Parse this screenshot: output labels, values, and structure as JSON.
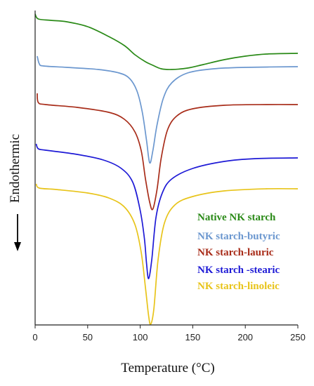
{
  "chart_data": {
    "type": "line",
    "title": "",
    "xlabel": "Temperature (°C)",
    "ylabel": "Endothermic",
    "xlim": [
      0,
      250
    ],
    "xticks": [
      0,
      50,
      100,
      150,
      200,
      250
    ],
    "grid": false,
    "legend_position": "lower-right",
    "y_direction_indicator": "down-arrow",
    "series": [
      {
        "name": "Native NK starch",
        "color": "#2a8a17",
        "points": [
          [
            0,
            20
          ],
          [
            3,
            27
          ],
          [
            15,
            29
          ],
          [
            30,
            31
          ],
          [
            50,
            38
          ],
          [
            70,
            52
          ],
          [
            85,
            65
          ],
          [
            95,
            78
          ],
          [
            105,
            88
          ],
          [
            112,
            93
          ],
          [
            120,
            98
          ],
          [
            130,
            99
          ],
          [
            145,
            97
          ],
          [
            160,
            92
          ],
          [
            180,
            85
          ],
          [
            200,
            80
          ],
          [
            220,
            77
          ],
          [
            250,
            76
          ]
        ]
      },
      {
        "name": "NK starch-butyric",
        "color": "#6b97cf",
        "points": [
          [
            2,
            80
          ],
          [
            4,
            91
          ],
          [
            8,
            94
          ],
          [
            30,
            96
          ],
          [
            60,
            99
          ],
          [
            80,
            104
          ],
          [
            90,
            112
          ],
          [
            97,
            130
          ],
          [
            102,
            160
          ],
          [
            106,
            200
          ],
          [
            109,
            232
          ],
          [
            112,
            215
          ],
          [
            116,
            178
          ],
          [
            122,
            140
          ],
          [
            130,
            118
          ],
          [
            145,
            104
          ],
          [
            170,
            98
          ],
          [
            200,
            96
          ],
          [
            250,
            95
          ]
        ]
      },
      {
        "name": "NK starch-lauric",
        "color": "#a82c19",
        "points": [
          [
            2,
            133
          ],
          [
            3,
            146
          ],
          [
            10,
            149
          ],
          [
            40,
            153
          ],
          [
            70,
            160
          ],
          [
            85,
            170
          ],
          [
            95,
            188
          ],
          [
            101,
            215
          ],
          [
            105,
            255
          ],
          [
            109,
            288
          ],
          [
            112,
            298
          ],
          [
            116,
            270
          ],
          [
            120,
            225
          ],
          [
            126,
            185
          ],
          [
            135,
            165
          ],
          [
            150,
            155
          ],
          [
            180,
            150
          ],
          [
            220,
            149
          ],
          [
            250,
            149
          ]
        ]
      },
      {
        "name": "NK starch -stearic",
        "color": "#1e1ad6",
        "points": [
          [
            1,
            205
          ],
          [
            3,
            212
          ],
          [
            10,
            214
          ],
          [
            40,
            220
          ],
          [
            65,
            228
          ],
          [
            82,
            240
          ],
          [
            93,
            260
          ],
          [
            100,
            300
          ],
          [
            104,
            340
          ],
          [
            106,
            375
          ],
          [
            108,
            397
          ],
          [
            111,
            370
          ],
          [
            115,
            310
          ],
          [
            121,
            275
          ],
          [
            130,
            255
          ],
          [
            150,
            240
          ],
          [
            180,
            230
          ],
          [
            210,
            226
          ],
          [
            250,
            225
          ]
        ]
      },
      {
        "name": "NK starch-linoleic",
        "color": "#e8c41a",
        "points": [
          [
            1,
            262
          ],
          [
            4,
            268
          ],
          [
            20,
            270
          ],
          [
            50,
            275
          ],
          [
            70,
            282
          ],
          [
            85,
            295
          ],
          [
            95,
            320
          ],
          [
            101,
            360
          ],
          [
            105,
            410
          ],
          [
            108,
            450
          ],
          [
            110,
            462
          ],
          [
            113,
            440
          ],
          [
            117,
            370
          ],
          [
            123,
            318
          ],
          [
            133,
            292
          ],
          [
            150,
            280
          ],
          [
            180,
            272
          ],
          [
            220,
            269
          ],
          [
            250,
            269
          ]
        ]
      }
    ]
  }
}
